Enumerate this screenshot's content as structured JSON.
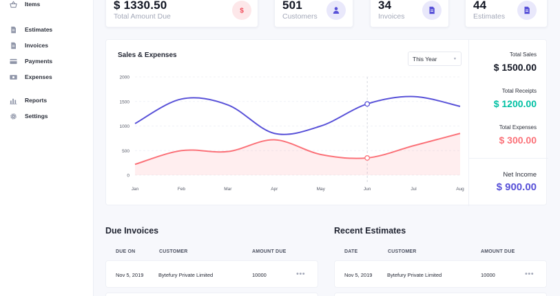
{
  "sidebar": {
    "items": [
      {
        "label": "Items",
        "icon": "basket-icon"
      },
      {
        "label": "Estimates",
        "icon": "document-icon"
      },
      {
        "label": "Invoices",
        "icon": "document-icon"
      },
      {
        "label": "Payments",
        "icon": "credit-card-icon"
      },
      {
        "label": "Expenses",
        "icon": "money-icon"
      },
      {
        "label": "Reports",
        "icon": "bar-chart-icon"
      },
      {
        "label": "Settings",
        "icon": "gear-icon"
      }
    ]
  },
  "stats": [
    {
      "value": "$ 1330.50",
      "label": "Total Amount Due",
      "icon": "dollar-icon",
      "icon_color": "#f04b59",
      "icon_bg": "#fde7e9"
    },
    {
      "value": "501",
      "label": "Customers",
      "icon": "user-icon",
      "icon_color": "#5851d8",
      "icon_bg": "#e9e8fb"
    },
    {
      "value": "34",
      "label": "Invoices",
      "icon": "document-icon",
      "icon_color": "#5851d8",
      "icon_bg": "#e9e8fb"
    },
    {
      "value": "44",
      "label": "Estimates",
      "icon": "document-icon",
      "icon_color": "#5851d8",
      "icon_bg": "#e9e8fb"
    }
  ],
  "chart_panel": {
    "title": "Sales & Expenses",
    "period": "This Year"
  },
  "chart_data": {
    "type": "line",
    "title": "Sales & Expenses",
    "categories": [
      "Jan",
      "Feb",
      "Mar",
      "Apr",
      "May",
      "Jun",
      "Jul",
      "Aug"
    ],
    "y_ticks": [
      "0",
      "500",
      "1000",
      "1500",
      "2000"
    ],
    "ylim": [
      0,
      2000
    ],
    "grid": true,
    "series": [
      {
        "values": [
          1050,
          1550,
          1430,
          850,
          1000,
          1450,
          1600,
          1400
        ],
        "color": "#5851d8",
        "fill": false
      },
      {
        "values": [
          220,
          500,
          480,
          720,
          420,
          350,
          600,
          850
        ],
        "color": "#fb7178",
        "fill": true
      }
    ],
    "highlight_index": 5
  },
  "summary": {
    "total_sales_label": "Total Sales",
    "total_sales_value": "$ 1500.00",
    "total_receipts_label": "Total Receipts",
    "total_receipts_value": "$ 1200.00",
    "total_expenses_label": "Total Expenses",
    "total_expenses_value": "$ 300.00",
    "net_income_label": "Net Income",
    "net_income_value": "$ 900.00",
    "colors": {
      "sales": "#111522",
      "receipts": "#00c0a3",
      "expenses": "#fb7178",
      "net": "#5851d8"
    }
  },
  "due_invoices": {
    "title": "Due Invoices",
    "columns": [
      "DUE ON",
      "CUSTOMER",
      "AMOUNT DUE"
    ],
    "rows": [
      {
        "date": "Nov 5, 2019",
        "customer": "Bytefury Private Limited",
        "amount": "10000"
      }
    ]
  },
  "recent_estimates": {
    "title": "Recent Estimates",
    "columns": [
      "DATE",
      "CUSTOMER",
      "AMOUNT DUE"
    ],
    "rows": [
      {
        "date": "Nov 5, 2019",
        "customer": "Bytefury Private Limited",
        "amount": "10000"
      }
    ]
  },
  "row_menu_glyph": "•••"
}
